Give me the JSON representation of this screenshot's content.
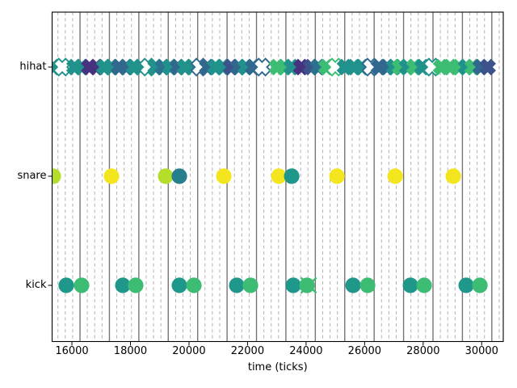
{
  "chart_data": {
    "type": "scatter",
    "title": "",
    "xlabel": "time (ticks)",
    "ylabel": "",
    "xticks": [
      16000,
      18000,
      20000,
      22000,
      24000,
      26000,
      28000,
      30000
    ],
    "xlim": [
      15323,
      30737
    ],
    "categories": [
      "kick",
      "snare",
      "hihat"
    ],
    "grid": {
      "major_start_tick": 16276,
      "major_spacing_ticks": 1005,
      "major_count": 15,
      "minor_per_major": 4,
      "major_color": "#757575",
      "minor_color": "#b2b2b2"
    },
    "palette": {
      "teal": "#21918c",
      "dteal": "#2c728e",
      "blue": "#31688e",
      "navy": "#3b528b",
      "purple": "#46327e",
      "green": "#3dbc74",
      "ygreen": "#b5de2b",
      "yellow": "#f4e61e",
      "steal": "#277f8e",
      "kteal": "#1f988b",
      "xgreen": "#3fbc73"
    },
    "series": [
      {
        "name": "hihat",
        "marker": "X",
        "row": "hihat",
        "points": [
          [
            15364,
            "teal",
            0
          ],
          [
            15668,
            "teal",
            1
          ],
          [
            16090,
            "teal",
            0
          ],
          [
            16339,
            "teal",
            0
          ],
          [
            16598,
            "purple",
            0
          ],
          [
            16836,
            "purple",
            0
          ],
          [
            17104,
            "teal",
            0
          ],
          [
            17352,
            "teal",
            0
          ],
          [
            17609,
            "blue",
            0
          ],
          [
            17857,
            "blue",
            0
          ],
          [
            18125,
            "teal",
            0
          ],
          [
            18346,
            "teal",
            0
          ],
          [
            18603,
            "teal",
            1
          ],
          [
            18862,
            "teal",
            0
          ],
          [
            19110,
            "dteal",
            0
          ],
          [
            19359,
            "teal",
            0
          ],
          [
            19616,
            "blue",
            0
          ],
          [
            19864,
            "teal",
            0
          ],
          [
            20113,
            "teal",
            0
          ],
          [
            20369,
            "blue",
            1
          ],
          [
            20629,
            "blue",
            0
          ],
          [
            20905,
            "teal",
            0
          ],
          [
            21162,
            "teal",
            0
          ],
          [
            21438,
            "navy",
            0
          ],
          [
            21694,
            "blue",
            0
          ],
          [
            21943,
            "teal",
            0
          ],
          [
            22191,
            "blue",
            0
          ],
          [
            22495,
            "blue",
            1
          ],
          [
            23003,
            "green",
            0
          ],
          [
            23259,
            "green",
            0
          ],
          [
            23508,
            "teal",
            0
          ],
          [
            23839,
            "purple",
            0
          ],
          [
            24170,
            "navy",
            0
          ],
          [
            24418,
            "dteal",
            0
          ],
          [
            24694,
            "green",
            0
          ],
          [
            24998,
            "green",
            1
          ],
          [
            25330,
            "teal",
            0
          ],
          [
            25633,
            "teal",
            0
          ],
          [
            25909,
            "teal",
            0
          ],
          [
            26213,
            "blue",
            1
          ],
          [
            26489,
            "blue",
            0
          ],
          [
            26765,
            "blue",
            0
          ],
          [
            27013,
            "teal",
            0
          ],
          [
            27207,
            "green",
            0
          ],
          [
            27455,
            "teal",
            0
          ],
          [
            27704,
            "green",
            0
          ],
          [
            27980,
            "teal",
            0
          ],
          [
            28311,
            "teal",
            1
          ],
          [
            28615,
            "green",
            0
          ],
          [
            28918,
            "green",
            0
          ],
          [
            29222,
            "green",
            0
          ],
          [
            29470,
            "teal",
            0
          ],
          [
            29691,
            "green",
            0
          ],
          [
            29967,
            "blue",
            0
          ],
          [
            30202,
            "navy",
            0
          ]
        ]
      },
      {
        "name": "snare",
        "marker": "o",
        "row": "snare",
        "points": [
          [
            15364,
            "ygreen"
          ],
          [
            17352,
            "yellow"
          ],
          [
            19202,
            "ygreen"
          ],
          [
            19671,
            "steal"
          ],
          [
            21190,
            "yellow"
          ],
          [
            23067,
            "yellow"
          ],
          [
            23509,
            "kteal"
          ],
          [
            25055,
            "yellow"
          ],
          [
            27043,
            "yellow"
          ],
          [
            29030,
            "yellow"
          ]
        ]
      },
      {
        "name": "kick",
        "marker": "o",
        "row": "kick",
        "points": [
          [
            15806,
            "kteal"
          ],
          [
            16331,
            "green"
          ],
          [
            17738,
            "kteal"
          ],
          [
            18180,
            "green"
          ],
          [
            19671,
            "kteal"
          ],
          [
            20168,
            "green"
          ],
          [
            21631,
            "kteal"
          ],
          [
            22100,
            "green"
          ],
          [
            23563,
            "kteal"
          ],
          [
            24033,
            "green"
          ],
          [
            25606,
            "kteal"
          ],
          [
            26103,
            "green"
          ],
          [
            27566,
            "kteal"
          ],
          [
            28035,
            "green"
          ],
          [
            29470,
            "kteal"
          ],
          [
            29939,
            "green"
          ]
        ]
      },
      {
        "name": "kick-cross",
        "marker": "x",
        "row": "kick",
        "points": [
          [
            24088,
            "xgreen"
          ]
        ]
      }
    ]
  }
}
